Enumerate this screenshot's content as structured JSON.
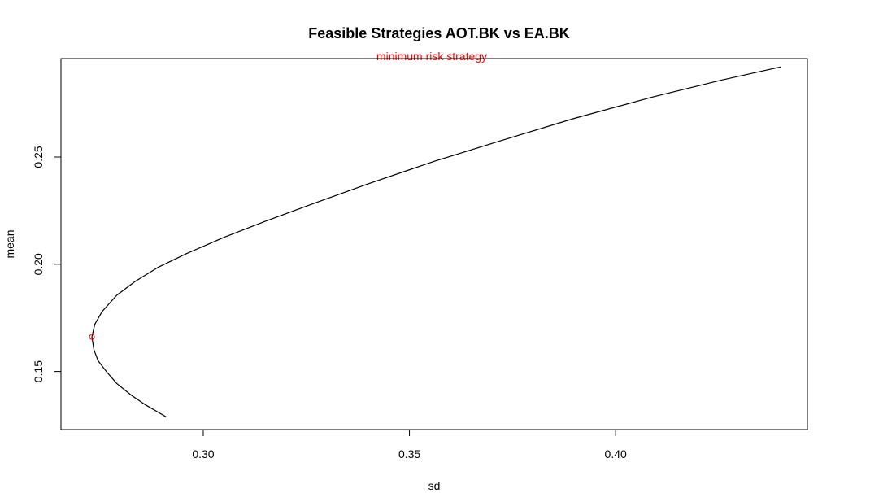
{
  "chart_data": {
    "type": "line",
    "title": "Feasible Strategies AOT.BK vs EA.BK",
    "subtitle": "minimum risk strategy",
    "xlabel": "sd",
    "ylabel": "mean",
    "xlim": [
      0.2655,
      0.4465
    ],
    "ylim": [
      0.1229,
      0.2959
    ],
    "x_ticks": [
      {
        "value": 0.3,
        "label": "0.30"
      },
      {
        "value": 0.35,
        "label": "0.35"
      },
      {
        "value": 0.4,
        "label": "0.40"
      }
    ],
    "y_ticks": [
      {
        "value": 0.15,
        "label": "0.15"
      },
      {
        "value": 0.2,
        "label": "0.20"
      },
      {
        "value": 0.25,
        "label": "0.25"
      }
    ],
    "grid": false,
    "series": [
      {
        "color": "#000000",
        "points": [
          [
            0.291,
            0.1288
          ],
          [
            0.286,
            0.1344
          ],
          [
            0.2825,
            0.139
          ],
          [
            0.279,
            0.1444
          ],
          [
            0.2765,
            0.15
          ],
          [
            0.2745,
            0.155
          ],
          [
            0.2735,
            0.16
          ],
          [
            0.273,
            0.1661
          ],
          [
            0.2737,
            0.172
          ],
          [
            0.2755,
            0.178
          ],
          [
            0.279,
            0.1855
          ],
          [
            0.2835,
            0.192
          ],
          [
            0.289,
            0.1985
          ],
          [
            0.296,
            0.205
          ],
          [
            0.305,
            0.2125
          ],
          [
            0.315,
            0.22
          ],
          [
            0.327,
            0.2285
          ],
          [
            0.34,
            0.2375
          ],
          [
            0.356,
            0.248
          ],
          [
            0.372,
            0.2575
          ],
          [
            0.39,
            0.268
          ],
          [
            0.409,
            0.278
          ],
          [
            0.426,
            0.286
          ],
          [
            0.44,
            0.292
          ]
        ]
      }
    ],
    "highlight_point": {
      "x": 0.273,
      "y": 0.1661,
      "color": "#ff0000",
      "marker": "open-circle"
    }
  }
}
